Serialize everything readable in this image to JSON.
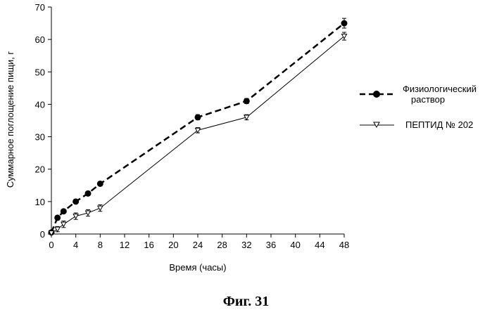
{
  "chart_data": {
    "type": "line",
    "xlabel": "Время (часы)",
    "ylabel": "Суммарное поглощение пищи, г",
    "xlim": [
      0,
      48
    ],
    "ylim": [
      0,
      70
    ],
    "xticks": [
      0,
      4,
      8,
      12,
      16,
      20,
      24,
      28,
      32,
      36,
      40,
      44,
      48
    ],
    "yticks": [
      0,
      10,
      20,
      30,
      40,
      50,
      60,
      70
    ],
    "grid": false,
    "legend_position": "right",
    "series": [
      {
        "name": "Физиологический раствор",
        "style": "dashed-filled-circle",
        "color": "#000000",
        "x": [
          0,
          1,
          2,
          4,
          6,
          8,
          24,
          32,
          48
        ],
        "y": [
          0.5,
          5,
          7,
          10,
          12.5,
          15.5,
          36,
          41,
          65
        ],
        "error": [
          0.5,
          0.5,
          0.5,
          0.5,
          0.5,
          0.6,
          0.8,
          0.8,
          1.5
        ]
      },
      {
        "name": "ПЕПТИД №  202",
        "style": "solid-open-triangle",
        "color": "#000000",
        "x": [
          0,
          1,
          2,
          4,
          6,
          8,
          24,
          32,
          48
        ],
        "y": [
          0.3,
          1.5,
          3,
          5.5,
          6.5,
          8,
          32,
          36,
          61
        ],
        "error": [
          0.3,
          0.8,
          1,
          1,
          1,
          1,
          0.8,
          0.8,
          1.2
        ]
      }
    ]
  },
  "legend": {
    "saline_line1": "Физиологический",
    "saline_line2": "раствор",
    "peptide": "ПЕПТИД №  202"
  },
  "caption": "Фиг. 31"
}
